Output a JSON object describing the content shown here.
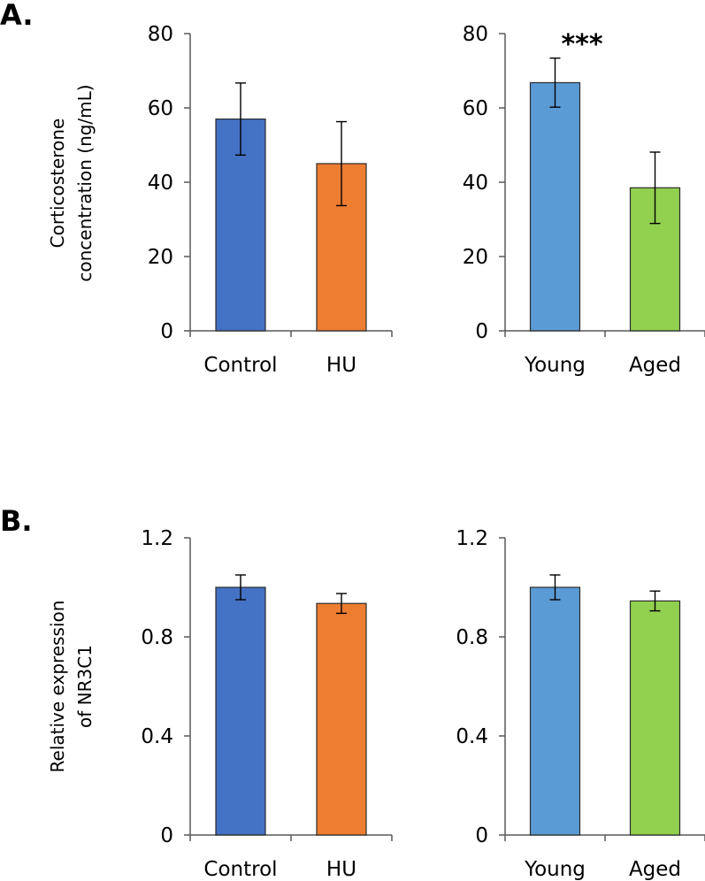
{
  "panel_labels": [
    "A.",
    "B."
  ],
  "chart_data": [
    {
      "type": "bar",
      "panel": "A.",
      "title": "",
      "ylabel": "Corticosterone concentration (ng/mL)",
      "ylabel_lines": [
        "Corticosterone",
        "concentration (ng/mL)"
      ],
      "categories": [
        "Control",
        "HU"
      ],
      "values": [
        57,
        45
      ],
      "errors": [
        9.7,
        11.3
      ],
      "colors": [
        "#4472C4",
        "#ED7D31"
      ],
      "ylim": [
        0,
        80
      ],
      "yticks": [
        0,
        20,
        40,
        60,
        80
      ],
      "ytick_labels": [
        "0",
        "20",
        "40",
        "60",
        "80"
      ],
      "annotation": ""
    },
    {
      "type": "bar",
      "panel": "A.",
      "title": "",
      "categories": [
        "Young",
        "Aged"
      ],
      "values": [
        66.8,
        38.5
      ],
      "errors": [
        6.6,
        9.6
      ],
      "colors": [
        "#5B9BD5",
        "#92D050"
      ],
      "ylim": [
        0,
        80
      ],
      "yticks": [
        0,
        20,
        40,
        60,
        80
      ],
      "ytick_labels": [
        "0",
        "20",
        "40",
        "60",
        "80"
      ],
      "annotation": "***"
    },
    {
      "type": "bar",
      "panel": "B.",
      "title": "",
      "ylabel": "Relative expression of NR3C1",
      "ylabel_lines": [
        "Relative expression",
        "of NR3C1"
      ],
      "categories": [
        "Control",
        "HU"
      ],
      "values": [
        1.0,
        0.935
      ],
      "errors": [
        0.05,
        0.04
      ],
      "colors": [
        "#4472C4",
        "#ED7D31"
      ],
      "ylim": [
        0,
        1.2
      ],
      "yticks": [
        0,
        0.4,
        0.8,
        1.2
      ],
      "ytick_labels": [
        "0",
        "0.4",
        "0.8",
        "1.2"
      ],
      "annotation": ""
    },
    {
      "type": "bar",
      "panel": "B.",
      "title": "",
      "categories": [
        "Young",
        "Aged"
      ],
      "values": [
        1.0,
        0.945
      ],
      "errors": [
        0.05,
        0.04
      ],
      "colors": [
        "#5B9BD5",
        "#92D050"
      ],
      "ylim": [
        0,
        1.2
      ],
      "yticks": [
        0,
        0.4,
        0.8,
        1.2
      ],
      "ytick_labels": [
        "0",
        "0.4",
        "0.8",
        "1.2"
      ],
      "annotation": ""
    }
  ]
}
